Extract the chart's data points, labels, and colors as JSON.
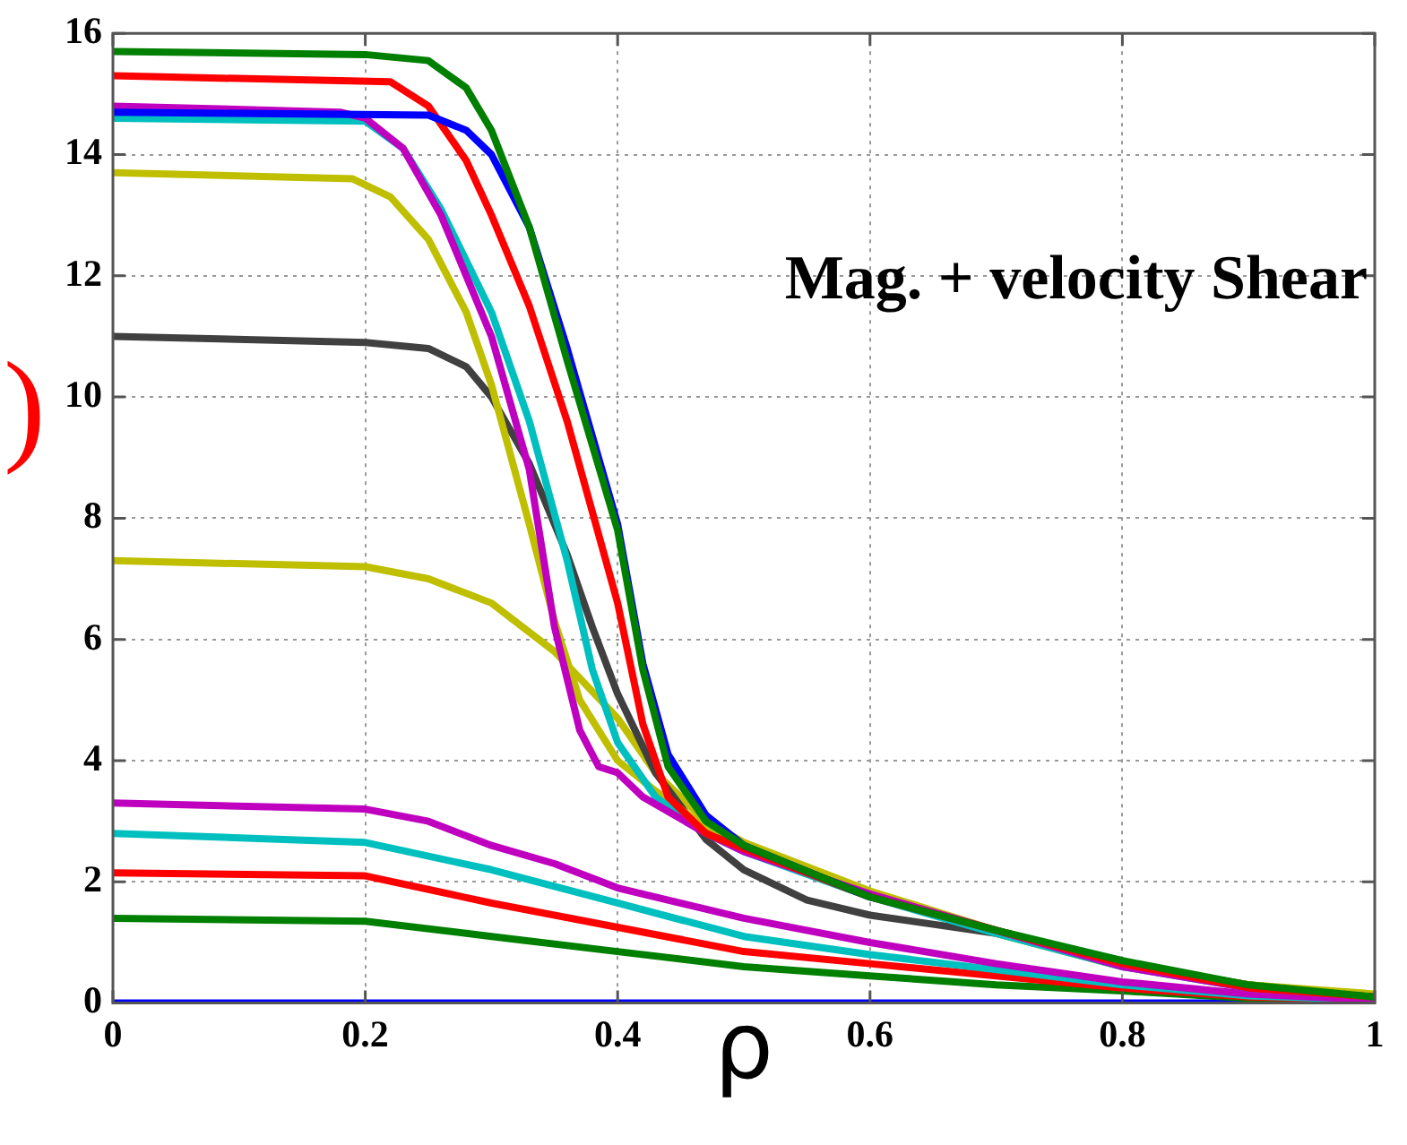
{
  "chart_data": {
    "type": "line",
    "xlabel": "ρ",
    "ylabel": ")",
    "annotations": [
      "Mag. + velocity Shear"
    ],
    "xlim": [
      0,
      1
    ],
    "ylim": [
      0,
      16
    ],
    "xticks": [
      0,
      0.2,
      0.4,
      0.6,
      0.8,
      1
    ],
    "yticks": [
      0,
      2,
      4,
      6,
      8,
      10,
      12,
      14,
      16
    ],
    "grid": true,
    "legend": false,
    "marker": "none",
    "line_style": "solid",
    "series": [
      {
        "color": "#007f00",
        "x": [
          0,
          0.2,
          0.25,
          0.28,
          0.3,
          0.33,
          0.36,
          0.4,
          0.42,
          0.44,
          0.47,
          0.5,
          0.6,
          0.7,
          0.8,
          0.9,
          1
        ],
        "values": [
          15.7,
          15.65,
          15.55,
          15.1,
          14.4,
          12.8,
          10.6,
          7.8,
          5.5,
          3.9,
          3.0,
          2.6,
          1.75,
          1.2,
          0.7,
          0.3,
          0.1
        ]
      },
      {
        "color": "#0000ff",
        "x": [
          0,
          0.25,
          0.28,
          0.3,
          0.33,
          0.36,
          0.4,
          0.42,
          0.44,
          0.47,
          0.5,
          0.6
        ],
        "values": [
          14.7,
          14.65,
          14.4,
          14.0,
          12.8,
          10.8,
          7.9,
          5.6,
          4.1,
          3.1,
          2.6,
          1.75
        ]
      },
      {
        "color": "#ff0000",
        "x": [
          0,
          0.22,
          0.25,
          0.28,
          0.3,
          0.33,
          0.36,
          0.4,
          0.42,
          0.44,
          0.47,
          0.5,
          0.6,
          0.7,
          0.8,
          0.9,
          1
        ],
        "values": [
          15.3,
          15.2,
          14.8,
          13.9,
          13.0,
          11.5,
          9.6,
          6.6,
          4.6,
          3.4,
          2.8,
          2.55,
          1.75,
          1.2,
          0.65,
          0.25,
          0.1
        ]
      },
      {
        "color": "#bf00bf",
        "x": [
          0,
          0.18,
          0.2,
          0.23,
          0.26,
          0.3,
          0.33,
          0.35,
          0.37,
          0.385,
          0.4,
          0.42,
          0.47,
          0.5,
          0.6,
          0.7,
          0.8,
          0.9,
          1
        ],
        "values": [
          14.8,
          14.7,
          14.6,
          14.1,
          13.0,
          11.0,
          8.8,
          6.2,
          4.5,
          3.9,
          3.8,
          3.4,
          2.8,
          2.5,
          1.8,
          1.2,
          0.6,
          0.25,
          0.1
        ]
      },
      {
        "color": "#00bfbf",
        "x": [
          0,
          0.2,
          0.23,
          0.26,
          0.3,
          0.33,
          0.36,
          0.38,
          0.4,
          0.43,
          0.47,
          0.5,
          0.6,
          0.7,
          0.8,
          0.9,
          1
        ],
        "values": [
          14.6,
          14.55,
          14.1,
          13.1,
          11.4,
          9.6,
          7.3,
          5.5,
          4.3,
          3.4,
          2.8,
          2.5,
          1.75,
          1.15,
          0.6,
          0.25,
          0.1
        ]
      },
      {
        "color": "#bfbf00",
        "x": [
          0,
          0.19,
          0.22,
          0.25,
          0.28,
          0.3,
          0.33,
          0.35,
          0.37,
          0.4,
          0.43,
          0.47,
          0.5,
          0.6,
          0.7,
          0.8,
          0.9,
          1
        ],
        "values": [
          13.7,
          13.6,
          13.3,
          12.6,
          11.4,
          10.2,
          7.9,
          6.3,
          5.0,
          4.0,
          3.5,
          2.9,
          2.6,
          1.8,
          1.15,
          0.6,
          0.3,
          0.15
        ]
      },
      {
        "color": "#404040",
        "x": [
          0,
          0.2,
          0.25,
          0.28,
          0.3,
          0.33,
          0.36,
          0.38,
          0.4,
          0.43,
          0.47,
          0.5,
          0.55,
          0.6,
          0.65,
          0.7,
          0.8,
          0.9,
          1
        ],
        "values": [
          11.0,
          10.9,
          10.8,
          10.5,
          10.0,
          8.9,
          7.4,
          6.2,
          5.1,
          3.8,
          2.7,
          2.2,
          1.7,
          1.45,
          1.3,
          1.15,
          0.65,
          0.3,
          0.1
        ]
      },
      {
        "color": "#bfbf00",
        "x": [
          0,
          0.2,
          0.25,
          0.3,
          0.35,
          0.4,
          0.43,
          0.47,
          0.5,
          0.6,
          0.7,
          0.8,
          0.9,
          1
        ],
        "values": [
          7.3,
          7.2,
          7.0,
          6.6,
          5.8,
          4.7,
          3.8,
          3.0,
          2.65,
          1.85,
          1.2,
          0.65,
          0.3,
          0.12
        ]
      },
      {
        "color": "#bf00bf",
        "x": [
          0,
          0.2,
          0.25,
          0.3,
          0.35,
          0.4,
          0.5,
          0.6,
          0.7,
          0.8,
          0.9,
          1
        ],
        "values": [
          3.3,
          3.2,
          3.0,
          2.6,
          2.3,
          1.9,
          1.4,
          1.0,
          0.65,
          0.35,
          0.15,
          0.05
        ]
      },
      {
        "color": "#00bfbf",
        "x": [
          0,
          0.2,
          0.3,
          0.4,
          0.5,
          0.6,
          0.7,
          0.8,
          0.9,
          1
        ],
        "values": [
          2.8,
          2.65,
          2.2,
          1.65,
          1.1,
          0.8,
          0.55,
          0.3,
          0.12,
          0.05
        ]
      },
      {
        "color": "#ff0000",
        "x": [
          0,
          0.2,
          0.3,
          0.4,
          0.5,
          0.6,
          0.7,
          0.8,
          0.9,
          1
        ],
        "values": [
          2.15,
          2.1,
          1.65,
          1.25,
          0.85,
          0.65,
          0.45,
          0.25,
          0.1,
          0.05
        ]
      },
      {
        "color": "#007f00",
        "x": [
          0,
          0.2,
          0.3,
          0.4,
          0.5,
          0.6,
          0.7,
          0.8,
          0.9,
          1
        ],
        "values": [
          1.4,
          1.35,
          1.1,
          0.85,
          0.6,
          0.45,
          0.3,
          0.2,
          0.08,
          0.03
        ]
      },
      {
        "color": "#0000ff",
        "x": [
          0,
          1
        ],
        "values": [
          0,
          0
        ]
      }
    ]
  }
}
